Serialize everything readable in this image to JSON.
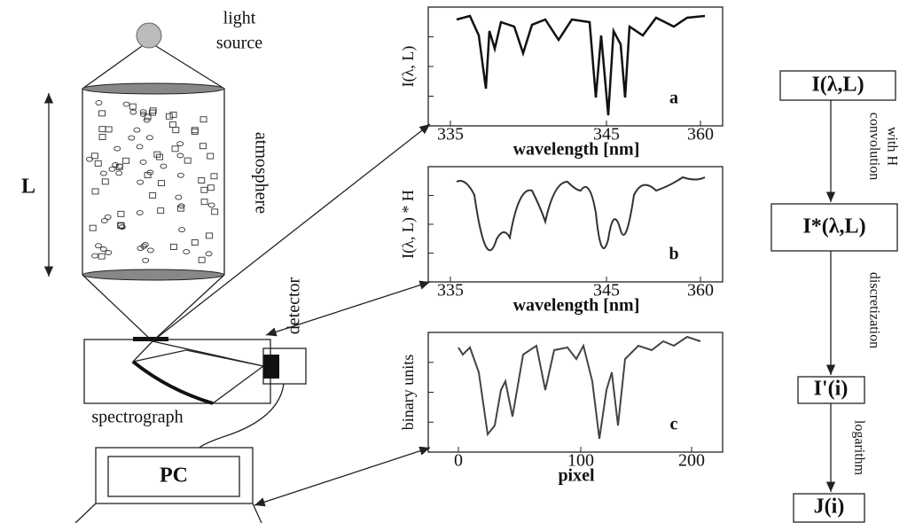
{
  "setup": {
    "light_source": [
      "light",
      "source"
    ],
    "atmosphere": "atmosphere",
    "length": "L",
    "detector": "detector",
    "spectrograph": "spectrograph",
    "computer": "PC"
  },
  "plots": [
    {
      "letter": "a",
      "y_label": "I(λ, L)",
      "x_label": "wavelength [nm]",
      "x_ticks": [
        "335",
        "345",
        "360"
      ]
    },
    {
      "letter": "b",
      "y_label": "I(λ, L) * H",
      "x_label": "wavelength [nm]",
      "x_ticks": [
        "335",
        "345",
        "360"
      ]
    },
    {
      "letter": "c",
      "y_label": "binary units",
      "x_label": "pixel",
      "x_ticks": [
        "0",
        "100",
        "200"
      ]
    }
  ],
  "flow": {
    "nodes": [
      "I(λ,L)",
      "I*(λ,L)",
      "I'(i)",
      "J(i)"
    ],
    "steps": [
      [
        "convolution",
        "with H"
      ],
      [
        "discretization"
      ],
      [
        "logarithm"
      ]
    ]
  }
}
